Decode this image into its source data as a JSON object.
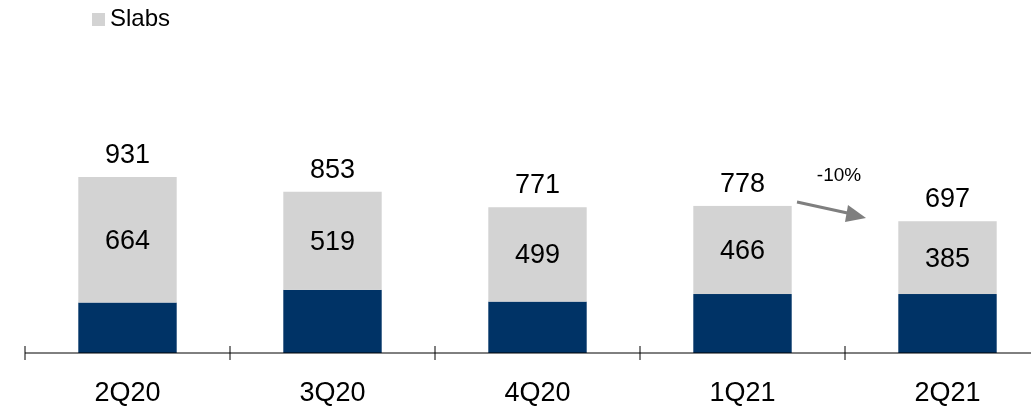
{
  "chart_data": {
    "type": "bar",
    "stacked": true,
    "legend": "top left",
    "categories": [
      "2Q20",
      "3Q20",
      "4Q20",
      "1Q21",
      "2Q21"
    ],
    "series": [
      {
        "color": "#003366",
        "values": [
          267,
          334,
          272,
          312,
          312
        ]
      },
      {
        "name": "Slabs",
        "color": "#d3d3d3",
        "values": [
          664,
          519,
          499,
          466,
          385
        ],
        "value_labels": [
          "664",
          "519",
          "499",
          "466",
          "385"
        ]
      }
    ],
    "totals": [
      "931",
      "853",
      "771",
      "778",
      "697"
    ],
    "annotations": [
      "-10%"
    ]
  }
}
